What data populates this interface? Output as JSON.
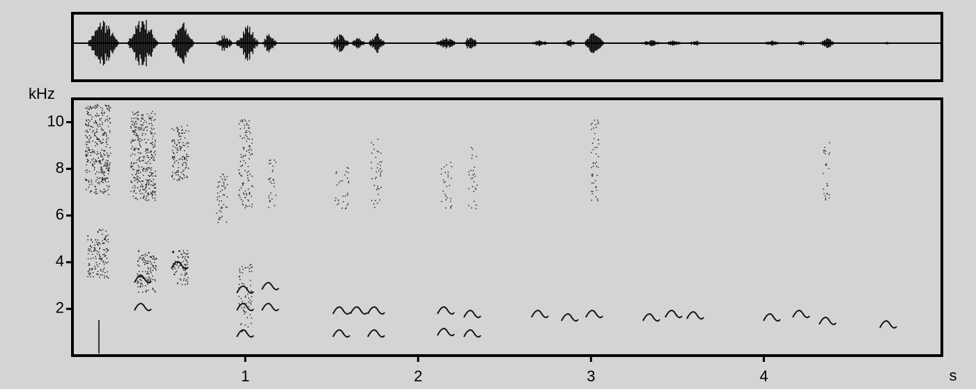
{
  "chart_data": {
    "type": "spectrogram",
    "ylabel": "kHz",
    "xlabel": "s",
    "xlim": [
      0,
      5.03
    ],
    "xticks": [
      1,
      2,
      3,
      4
    ],
    "ylim": [
      0,
      11
    ],
    "yticks": [
      2,
      4,
      6,
      8,
      10
    ]
  }
}
